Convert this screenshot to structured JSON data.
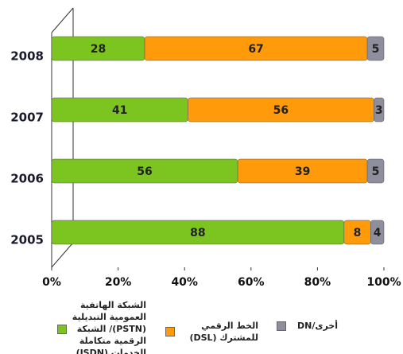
{
  "chart_data": {
    "type": "stacked-bar-horizontal",
    "categories": [
      "2008",
      "2007",
      "2006",
      "2005"
    ],
    "series": [
      {
        "name": "الشبكة الهاتفية العمومية التبديلية (PSTN)/ الشبكة الرقمية متكاملة الخدمات (ISDN)",
        "color": "#7cc520",
        "values": [
          28,
          41,
          56,
          88
        ]
      },
      {
        "name": "الخط الرقمي للمشترك (DSL)",
        "color": "#ff9a0a",
        "values": [
          67,
          56,
          39,
          8
        ]
      },
      {
        "name": "أخرى/DN",
        "color": "#8e8e9c",
        "values": [
          5,
          3,
          5,
          4
        ]
      }
    ],
    "xlim": [
      0,
      100
    ],
    "xticks": [
      {
        "value": 0,
        "label": "0%"
      },
      {
        "value": 20,
        "label": "20%"
      },
      {
        "value": 40,
        "label": "40%"
      },
      {
        "value": 60,
        "label": "60%"
      },
      {
        "value": 80,
        "label": "80%"
      },
      {
        "value": 100,
        "label": "100%"
      }
    ]
  }
}
